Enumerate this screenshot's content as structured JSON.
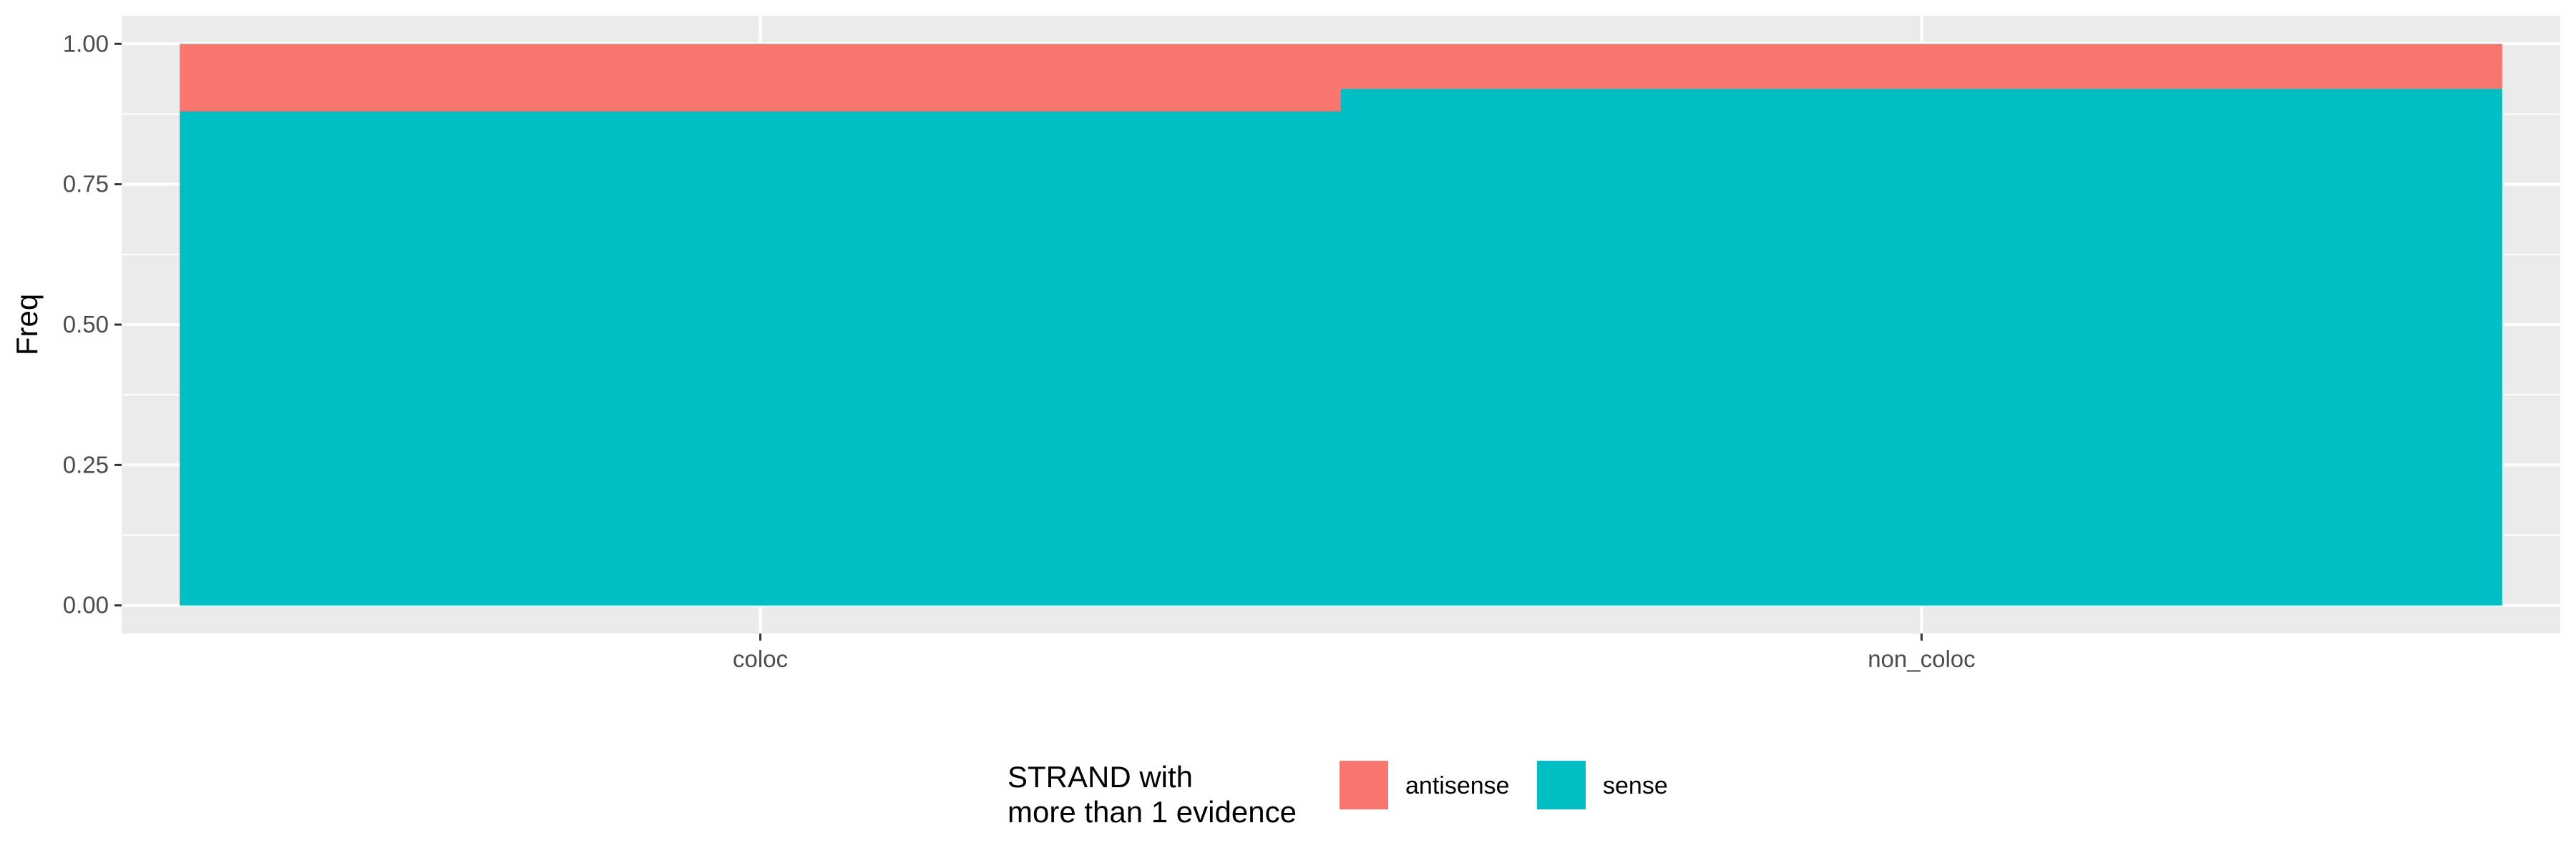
{
  "chart_data": {
    "type": "bar",
    "stacked": true,
    "title": "",
    "xlabel": "",
    "ylabel": "Freq",
    "categories": [
      "coloc",
      "non_coloc"
    ],
    "series": [
      {
        "name": "antisense",
        "values": [
          0.12,
          0.08
        ],
        "color": "#F8766D"
      },
      {
        "name": "sense",
        "values": [
          0.88,
          0.92
        ],
        "color": "#00BFC4"
      }
    ],
    "ylim": [
      -0.05,
      1.05
    ],
    "yticks": [
      "0.00",
      "0.25",
      "0.50",
      "0.75",
      "1.00"
    ],
    "grid": true,
    "panel_background": "#EBEBEB",
    "legend": {
      "title_lines": [
        "STRAND with",
        "more than 1 evidence"
      ],
      "position": "bottom"
    }
  }
}
